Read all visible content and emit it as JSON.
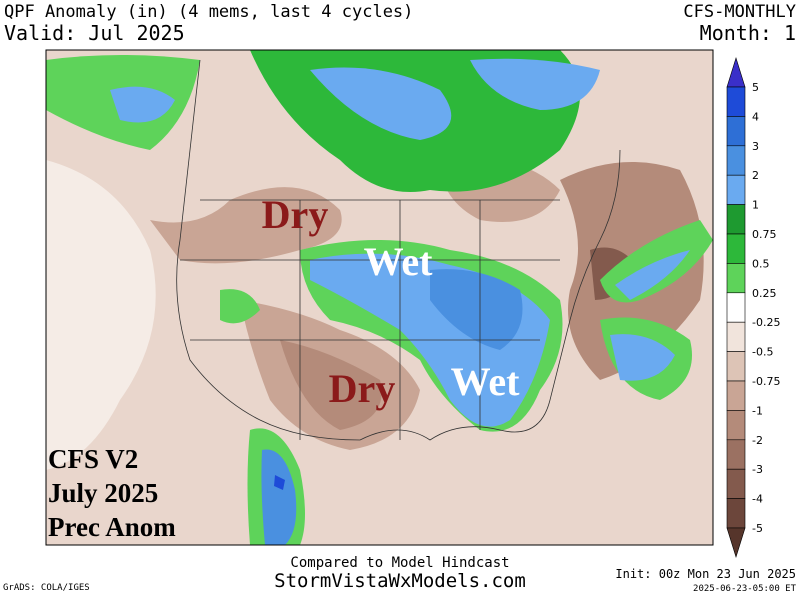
{
  "header": {
    "title": "QPF Anomaly (in) (4 mems, last 4 cycles)",
    "model": "CFS-MONTHLY",
    "valid": "Valid: Jul 2025",
    "month": "Month: 1"
  },
  "annotations": {
    "dry_north": "Dry",
    "wet_north": "Wet",
    "dry_south": "Dry",
    "wet_south": "Wet"
  },
  "caption": [
    "CFS V2",
    "July 2025",
    "Prec Anom"
  ],
  "colorbar": {
    "labels": [
      "5",
      "4",
      "3",
      "2",
      "1",
      "0.75",
      "0.5",
      "0.25",
      "-0.25",
      "-0.5",
      "-0.75",
      "-1",
      "-2",
      "-3",
      "-4",
      "-5"
    ]
  },
  "footer": {
    "note": "Compared to Model Hindcast",
    "site": "StormVistaWxModels.com",
    "init": "Init: 00z Mon 23 Jun 2025",
    "credit": "GrADS: COLA/IGES",
    "stamp": "2025-06-23-05:00 ET"
  }
}
